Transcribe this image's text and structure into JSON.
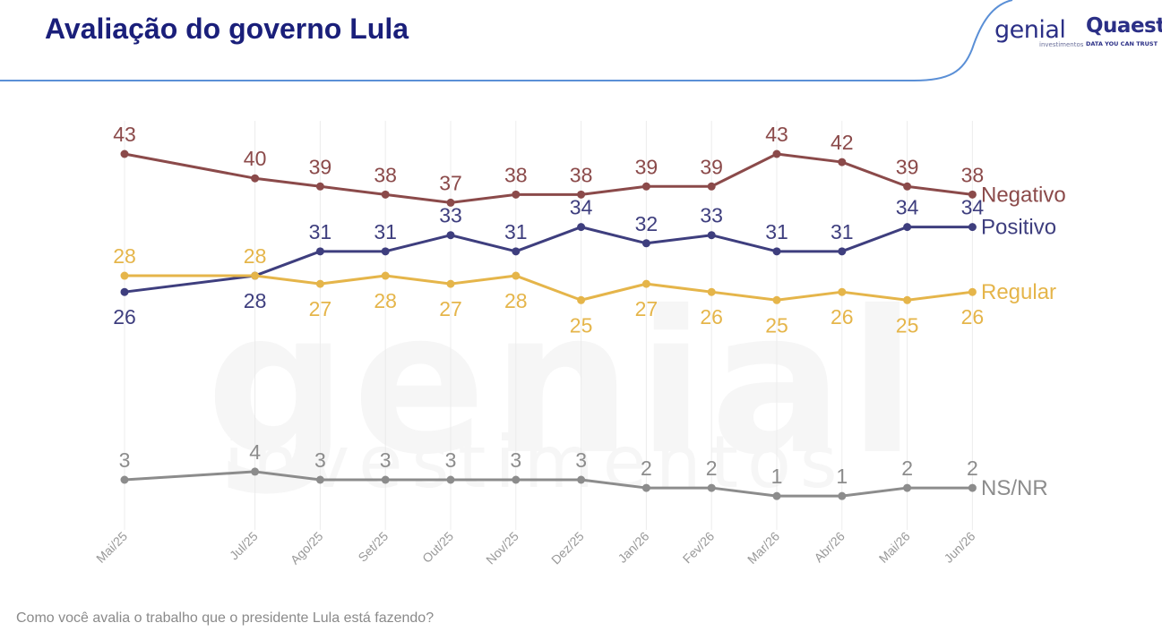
{
  "header": {
    "title": "Avaliação do governo Lula",
    "logo_genial": "genial",
    "logo_genial_sub": "investimentos",
    "logo_quaest": "Quaest",
    "logo_quaest_sub": "DATA YOU CAN TRUST"
  },
  "footnote": "Como você avalia o trabalho que o presidente Lula está fazendo?",
  "watermark": {
    "main": "genial",
    "sub": "investimentos"
  },
  "colors": {
    "negativo": "#8b4a4a",
    "positivo": "#3e3e7e",
    "regular": "#e5b54a",
    "nsnr": "#8c8c8c",
    "title": "#1a1f7a",
    "header_line": "#5a8fd6"
  },
  "chart_data": {
    "type": "line",
    "x": [
      "Mai/25",
      "Jul/25",
      "Ago/25",
      "Set/25",
      "Out/25",
      "Nov/25",
      "Dez/25",
      "Jan/26",
      "Fev/26",
      "Mar/26",
      "Abr/26",
      "Mai/26",
      "Jun/26"
    ],
    "series": [
      {
        "name": "Negativo",
        "values": [
          43,
          40,
          39,
          38,
          37,
          38,
          38,
          39,
          39,
          43,
          42,
          39,
          38
        ]
      },
      {
        "name": "Positivo",
        "values": [
          26,
          28,
          31,
          31,
          33,
          31,
          34,
          32,
          33,
          31,
          31,
          34,
          34
        ]
      },
      {
        "name": "Regular",
        "values": [
          28,
          28,
          27,
          28,
          27,
          28,
          25,
          27,
          26,
          25,
          26,
          25,
          26
        ]
      },
      {
        "name": "NS/NR",
        "values": [
          3,
          4,
          3,
          3,
          3,
          3,
          3,
          2,
          2,
          1,
          1,
          2,
          2
        ]
      }
    ],
    "title": "",
    "xlabel": "",
    "ylabel": "",
    "grid": "vertical",
    "legend": "right-inline"
  }
}
